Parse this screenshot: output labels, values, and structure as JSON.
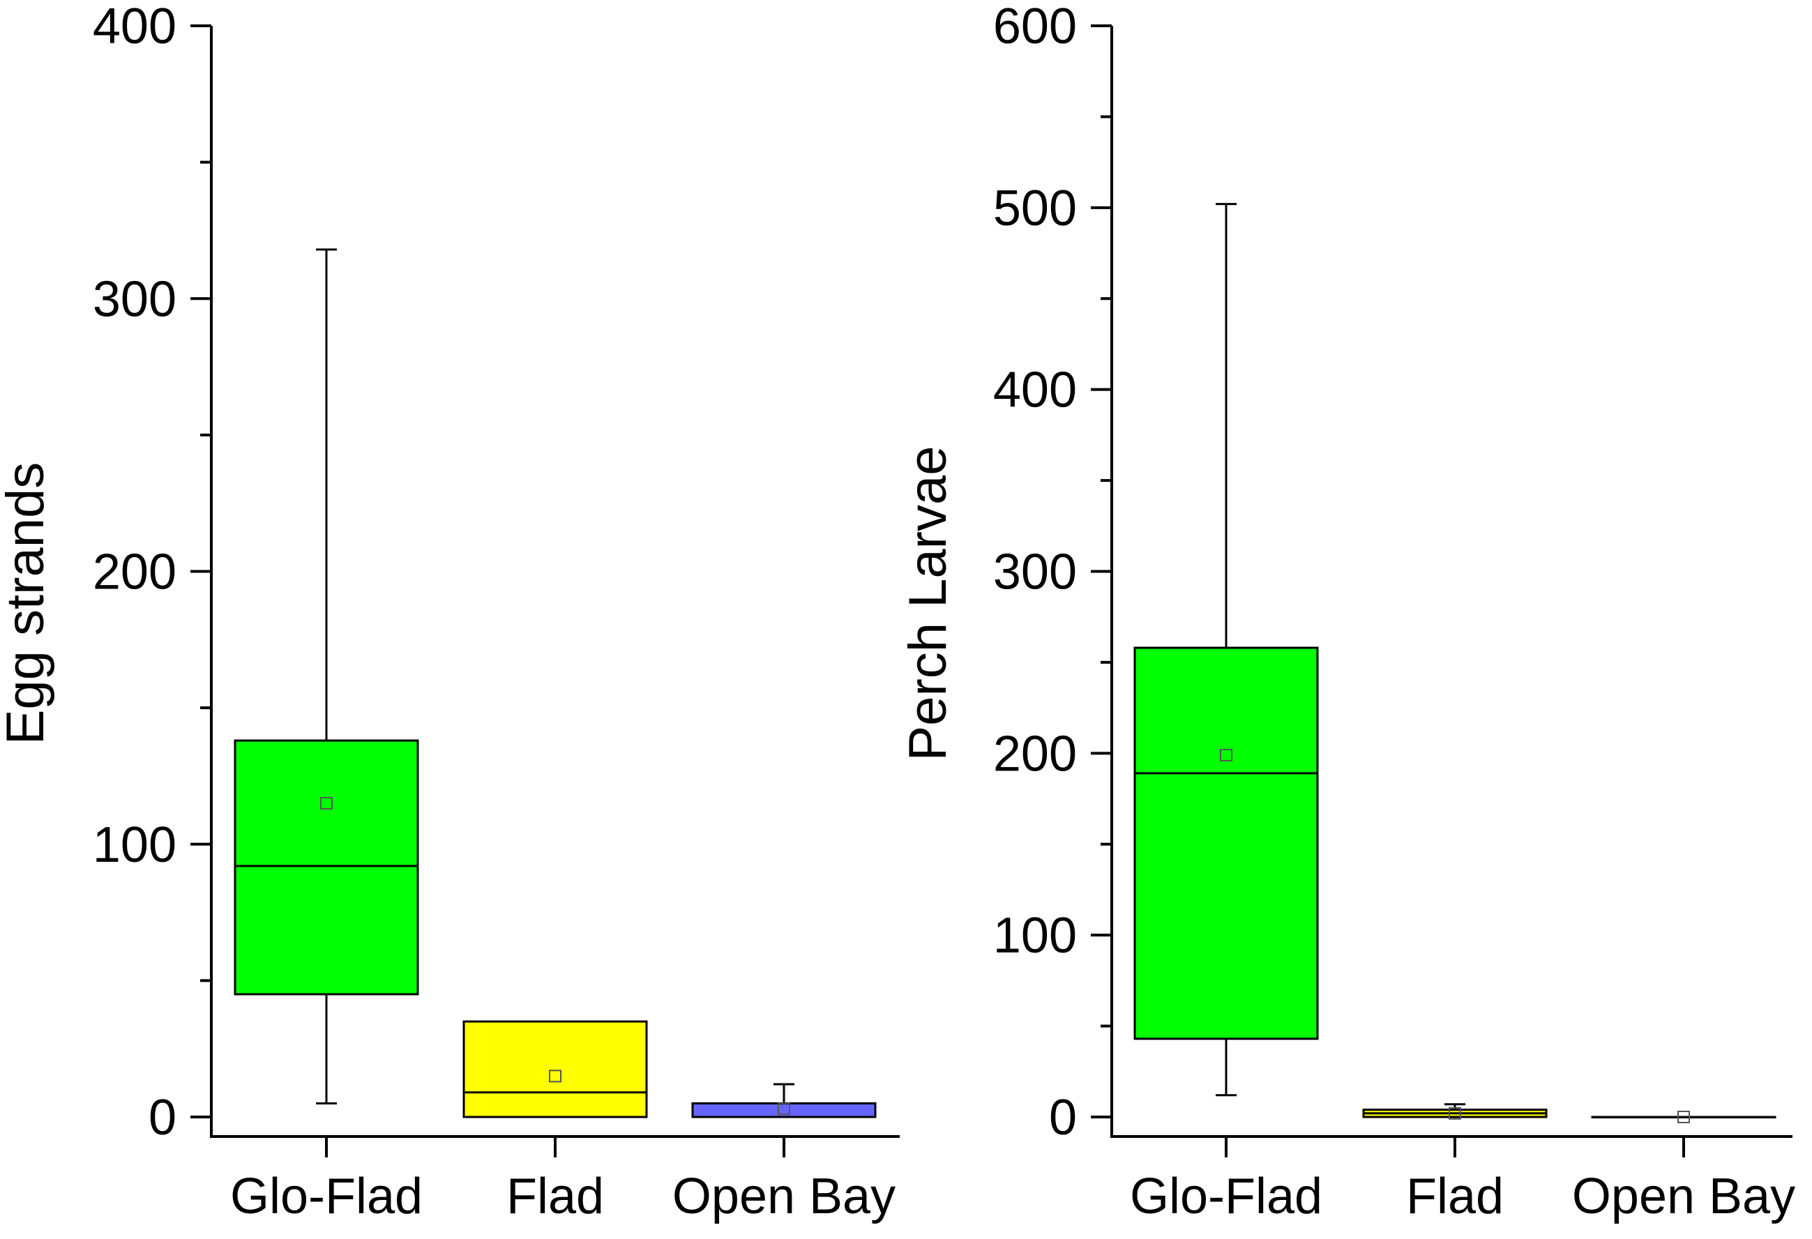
{
  "chart_data": [
    {
      "type": "box",
      "ylabel": "Egg strands",
      "ylim": [
        0,
        400
      ],
      "yticks": [
        0,
        100,
        200,
        300,
        400
      ],
      "yminor_step": 50,
      "categories": [
        "Glo-Flad",
        "Flad",
        "Open Bay"
      ],
      "boxes": [
        {
          "category": "Glo-Flad",
          "whisker_low": 5,
          "q1": 45,
          "median": 92,
          "q3": 138,
          "whisker_high": 318,
          "mean": 115,
          "color": "#00ff00"
        },
        {
          "category": "Flad",
          "whisker_low": 0,
          "q1": 0,
          "median": 9,
          "q3": 35,
          "whisker_high": 35,
          "mean": 15,
          "color": "#ffff00"
        },
        {
          "category": "Open Bay",
          "whisker_low": 0,
          "q1": 0,
          "median": 5,
          "q3": 5,
          "whisker_high": 12,
          "mean": 3,
          "color": "#6666ff"
        }
      ]
    },
    {
      "type": "box",
      "ylabel": "Perch Larvae",
      "ylim": [
        0,
        600
      ],
      "yticks": [
        0,
        100,
        200,
        300,
        400,
        500,
        600
      ],
      "yminor_step": 50,
      "categories": [
        "Glo-Flad",
        "Flad",
        "Open Bay"
      ],
      "boxes": [
        {
          "category": "Glo-Flad",
          "whisker_low": 12,
          "q1": 43,
          "median": 189,
          "q3": 258,
          "whisker_high": 502,
          "mean": 199,
          "color": "#00ff00"
        },
        {
          "category": "Flad",
          "whisker_low": 0,
          "q1": 0,
          "median": 2,
          "q3": 4,
          "whisker_high": 7,
          "mean": 2,
          "color": "#ffff00"
        },
        {
          "category": "Open Bay",
          "whisker_low": 0,
          "q1": 0,
          "median": 0,
          "q3": 0,
          "whisker_high": 0,
          "mean": 0,
          "color": "#ffffff"
        }
      ]
    }
  ]
}
